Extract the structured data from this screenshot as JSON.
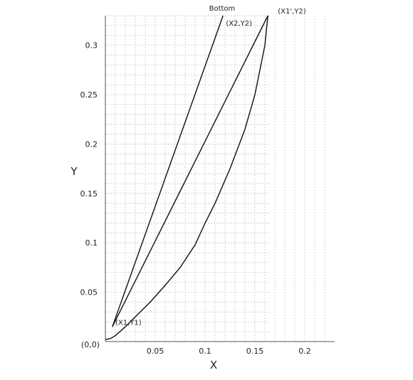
{
  "chart_data": {
    "type": "line",
    "title": "",
    "xlabel": "X",
    "ylabel": "Y",
    "xlim": [
      0,
      0.2
    ],
    "ylim": [
      0,
      0.33
    ],
    "x_ticks": [
      {
        "value": 0.05,
        "label": "0.05"
      },
      {
        "value": 0.1,
        "label": "0.1"
      },
      {
        "value": 0.15,
        "label": "0.15"
      },
      {
        "value": 0.2,
        "label": "0.2"
      }
    ],
    "y_ticks": [
      {
        "value": 0.05,
        "label": "0.05"
      },
      {
        "value": 0.1,
        "label": "0.1"
      },
      {
        "value": 0.15,
        "label": "0.15"
      },
      {
        "value": 0.2,
        "label": "0.2"
      },
      {
        "value": 0.25,
        "label": "0.25"
      },
      {
        "value": 0.3,
        "label": "0.3"
      }
    ],
    "origin_label": "(0,0)",
    "grid": true,
    "series": [
      {
        "name": "",
        "x": [
          0.0,
          0.005,
          0.01,
          0.02,
          0.03,
          0.045,
          0.06,
          0.075,
          0.09,
          0.1,
          0.11,
          0.125,
          0.14,
          0.15,
          0.16,
          0.163
        ],
        "y": [
          0.002,
          0.003,
          0.006,
          0.015,
          0.025,
          0.04,
          0.057,
          0.075,
          0.098,
          0.12,
          0.14,
          0.175,
          0.215,
          0.25,
          0.3,
          0.33
        ]
      },
      {
        "name": "",
        "x": [
          0.007,
          0.163
        ],
        "y": [
          0.015,
          0.33
        ]
      },
      {
        "name": "",
        "x": [
          0.007,
          0.118
        ],
        "y": [
          0.015,
          0.33
        ]
      }
    ],
    "annotations": [
      {
        "label": "Bottom",
        "x": 0.104,
        "y": 0.335
      },
      {
        "label": "(X2,Y2)",
        "x": 0.121,
        "y": 0.32
      },
      {
        "label": "(X1',Y2)",
        "x": 0.173,
        "y": 0.332
      },
      {
        "label": "(X1,Y1)",
        "x": 0.01,
        "y": 0.017
      }
    ]
  }
}
